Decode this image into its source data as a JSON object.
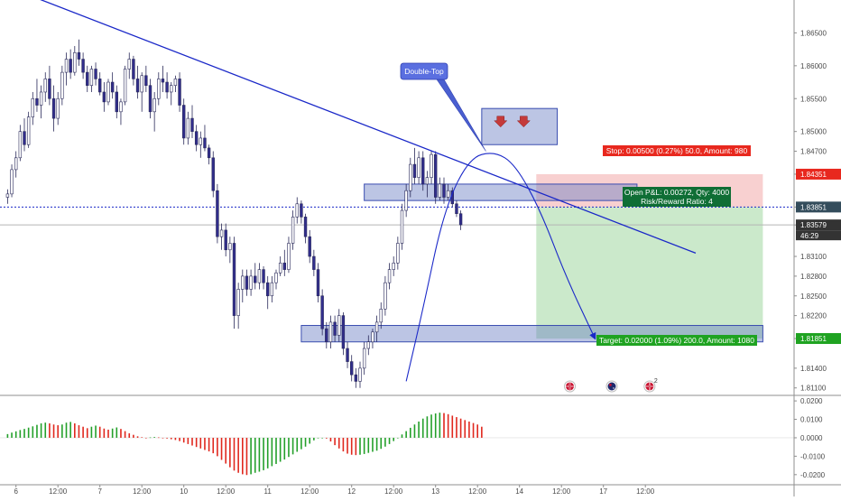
{
  "chart_data": {
    "type": "candlestick",
    "instrument_precision": 5,
    "main_ylim": [
      1.81,
      1.87
    ],
    "osc_ylim": [
      -0.0245,
      0.0225
    ],
    "price_ticks": [
      "1.86500",
      "1.86000",
      "1.85500",
      "1.85000",
      "1.84700",
      "1.84351",
      "1.83851",
      "1.83579",
      "1.83100",
      "1.82800",
      "1.82500",
      "1.82200",
      "1.81851",
      "1.81400",
      "1.81100"
    ],
    "price_tick_values": [
      1.865,
      1.86,
      1.855,
      1.85,
      1.847,
      1.84351,
      1.83851,
      1.83579,
      1.831,
      1.828,
      1.825,
      1.822,
      1.81851,
      1.814,
      1.811
    ],
    "osc_ticks": [
      "0.0200",
      "0.0100",
      "0.0000",
      "-0.0100",
      "-0.0200"
    ],
    "osc_tick_values": [
      0.02,
      0.01,
      0.0,
      -0.01,
      -0.02
    ],
    "time_labels": [
      "6",
      "12:00",
      "7",
      "12:00",
      "10",
      "12:00",
      "11",
      "12:00",
      "12",
      "12:00",
      "13",
      "12:00",
      "14",
      "12:00",
      "17",
      "12:00"
    ],
    "time_label_bars": [
      2,
      12,
      22,
      32,
      42,
      52,
      62,
      72,
      82,
      92,
      102,
      112,
      122,
      132,
      142,
      152
    ],
    "ohlc": [
      [
        1.84,
        1.8412,
        1.839,
        1.8405
      ],
      [
        1.8405,
        1.845,
        1.84,
        1.8442
      ],
      [
        1.8442,
        1.847,
        1.843,
        1.846
      ],
      [
        1.846,
        1.851,
        1.8455,
        1.85
      ],
      [
        1.85,
        1.852,
        1.847,
        1.848
      ],
      [
        1.848,
        1.853,
        1.8475,
        1.8522
      ],
      [
        1.8522,
        1.856,
        1.851,
        1.855
      ],
      [
        1.855,
        1.858,
        1.853,
        1.854
      ],
      [
        1.854,
        1.857,
        1.852,
        1.856
      ],
      [
        1.856,
        1.859,
        1.8545,
        1.858
      ],
      [
        1.858,
        1.86,
        1.854,
        1.855
      ],
      [
        1.855,
        1.857,
        1.85,
        1.852
      ],
      [
        1.852,
        1.856,
        1.851,
        1.855
      ],
      [
        1.855,
        1.86,
        1.854,
        1.859
      ],
      [
        1.859,
        1.862,
        1.857,
        1.861
      ],
      [
        1.861,
        1.8625,
        1.858,
        1.859
      ],
      [
        1.859,
        1.863,
        1.8585,
        1.862
      ],
      [
        1.862,
        1.864,
        1.86,
        1.861
      ],
      [
        1.861,
        1.862,
        1.858,
        1.859
      ],
      [
        1.859,
        1.86,
        1.856,
        1.857
      ],
      [
        1.857,
        1.86,
        1.856,
        1.8595
      ],
      [
        1.8595,
        1.8605,
        1.857,
        1.858
      ],
      [
        1.858,
        1.859,
        1.8555,
        1.856
      ],
      [
        1.856,
        1.8575,
        1.853,
        1.8545
      ],
      [
        1.8545,
        1.858,
        1.854,
        1.8575
      ],
      [
        1.8575,
        1.859,
        1.855,
        1.856
      ],
      [
        1.856,
        1.857,
        1.852,
        1.853
      ],
      [
        1.853,
        1.855,
        1.851,
        1.8545
      ],
      [
        1.8545,
        1.86,
        1.854,
        1.8595
      ],
      [
        1.8595,
        1.862,
        1.858,
        1.861
      ],
      [
        1.861,
        1.8615,
        1.857,
        1.858
      ],
      [
        1.858,
        1.86,
        1.855,
        1.856
      ],
      [
        1.856,
        1.859,
        1.853,
        1.8585
      ],
      [
        1.8585,
        1.86,
        1.856,
        1.857
      ],
      [
        1.857,
        1.858,
        1.852,
        1.853
      ],
      [
        1.853,
        1.856,
        1.85,
        1.855
      ],
      [
        1.855,
        1.859,
        1.854,
        1.858
      ],
      [
        1.858,
        1.86,
        1.856,
        1.8575
      ],
      [
        1.8575,
        1.859,
        1.855,
        1.856
      ],
      [
        1.856,
        1.8575,
        1.854,
        1.857
      ],
      [
        1.857,
        1.8585,
        1.856,
        1.858
      ],
      [
        1.858,
        1.859,
        1.853,
        1.854
      ],
      [
        1.854,
        1.855,
        1.848,
        1.849
      ],
      [
        1.849,
        1.853,
        1.848,
        1.852
      ],
      [
        1.852,
        1.854,
        1.849,
        1.85
      ],
      [
        1.85,
        1.851,
        1.847,
        1.848
      ],
      [
        1.848,
        1.85,
        1.846,
        1.849
      ],
      [
        1.849,
        1.851,
        1.847,
        1.8475
      ],
      [
        1.8475,
        1.848,
        1.845,
        1.846
      ],
      [
        1.846,
        1.847,
        1.84,
        1.841
      ],
      [
        1.841,
        1.842,
        1.833,
        1.834
      ],
      [
        1.834,
        1.836,
        1.832,
        1.835
      ],
      [
        1.835,
        1.836,
        1.831,
        1.832
      ],
      [
        1.832,
        1.834,
        1.83,
        1.833
      ],
      [
        1.833,
        1.834,
        1.82,
        1.822
      ],
      [
        1.822,
        1.827,
        1.82,
        1.826
      ],
      [
        1.826,
        1.829,
        1.824,
        1.828
      ],
      [
        1.828,
        1.829,
        1.825,
        1.826
      ],
      [
        1.826,
        1.829,
        1.825,
        1.828
      ],
      [
        1.828,
        1.83,
        1.826,
        1.827
      ],
      [
        1.827,
        1.83,
        1.826,
        1.829
      ],
      [
        1.829,
        1.8295,
        1.826,
        1.827
      ],
      [
        1.827,
        1.828,
        1.823,
        1.825
      ],
      [
        1.825,
        1.828,
        1.824,
        1.827
      ],
      [
        1.827,
        1.829,
        1.826,
        1.8285
      ],
      [
        1.8285,
        1.831,
        1.828,
        1.83
      ],
      [
        1.83,
        1.832,
        1.828,
        1.829
      ],
      [
        1.829,
        1.834,
        1.8285,
        1.833
      ],
      [
        1.833,
        1.838,
        1.832,
        1.837
      ],
      [
        1.837,
        1.84,
        1.836,
        1.839
      ],
      [
        1.839,
        1.8395,
        1.836,
        1.837
      ],
      [
        1.837,
        1.8375,
        1.833,
        1.834
      ],
      [
        1.834,
        1.835,
        1.83,
        1.831
      ],
      [
        1.831,
        1.832,
        1.828,
        1.829
      ],
      [
        1.829,
        1.83,
        1.824,
        1.825
      ],
      [
        1.825,
        1.826,
        1.819,
        1.82
      ],
      [
        1.82,
        1.821,
        1.817,
        1.818
      ],
      [
        1.818,
        1.822,
        1.817,
        1.821
      ],
      [
        1.821,
        1.822,
        1.818,
        1.819
      ],
      [
        1.819,
        1.823,
        1.818,
        1.822
      ],
      [
        1.822,
        1.8225,
        1.816,
        1.817
      ],
      [
        1.817,
        1.818,
        1.814,
        1.815
      ],
      [
        1.815,
        1.816,
        1.812,
        1.813
      ],
      [
        1.813,
        1.814,
        1.811,
        1.812
      ],
      [
        1.812,
        1.815,
        1.811,
        1.814
      ],
      [
        1.814,
        1.818,
        1.813,
        1.817
      ],
      [
        1.817,
        1.819,
        1.816,
        1.818
      ],
      [
        1.818,
        1.82,
        1.817,
        1.8195
      ],
      [
        1.8195,
        1.822,
        1.818,
        1.821
      ],
      [
        1.821,
        1.824,
        1.82,
        1.823
      ],
      [
        1.823,
        1.828,
        1.822,
        1.827
      ],
      [
        1.827,
        1.83,
        1.826,
        1.829
      ],
      [
        1.829,
        1.831,
        1.828,
        1.83
      ],
      [
        1.83,
        1.834,
        1.829,
        1.833
      ],
      [
        1.833,
        1.839,
        1.832,
        1.838
      ],
      [
        1.838,
        1.842,
        1.837,
        1.841
      ],
      [
        1.841,
        1.846,
        1.84,
        1.845
      ],
      [
        1.845,
        1.8475,
        1.842,
        1.843
      ],
      [
        1.843,
        1.847,
        1.842,
        1.846
      ],
      [
        1.846,
        1.847,
        1.841,
        1.842
      ],
      [
        1.842,
        1.844,
        1.84,
        1.843
      ],
      [
        1.843,
        1.847,
        1.842,
        1.8465
      ],
      [
        1.8465,
        1.847,
        1.839,
        1.84
      ],
      [
        1.84,
        1.843,
        1.8395,
        1.842
      ],
      [
        1.842,
        1.843,
        1.839,
        1.84
      ],
      [
        1.84,
        1.842,
        1.8395,
        1.841
      ],
      [
        1.841,
        1.8415,
        1.8385,
        1.839
      ],
      [
        1.839,
        1.8395,
        1.837,
        1.8375
      ],
      [
        1.8375,
        1.838,
        1.835,
        1.8358
      ]
    ],
    "oscillator": [
      0.002,
      0.0028,
      0.0035,
      0.0042,
      0.0048,
      0.0055,
      0.0062,
      0.007,
      0.0078,
      0.0082,
      0.0078,
      0.0072,
      0.0068,
      0.0072,
      0.0082,
      0.0086,
      0.0078,
      0.0068,
      0.006,
      0.0052,
      0.006,
      0.0066,
      0.006,
      0.005,
      0.0044,
      0.005,
      0.0056,
      0.0048,
      0.0036,
      0.0024,
      0.0016,
      0.0008,
      0.0003,
      0.0,
      0.0002,
      0.0004,
      0.0002,
      0.0,
      -0.0004,
      -0.0008,
      -0.0012,
      -0.0018,
      -0.0026,
      -0.0034,
      -0.0042,
      -0.005,
      -0.0058,
      -0.0066,
      -0.0074,
      -0.0084,
      -0.01,
      -0.012,
      -0.014,
      -0.016,
      -0.0178,
      -0.019,
      -0.0198,
      -0.0202,
      -0.0198,
      -0.019,
      -0.0184,
      -0.0176,
      -0.0166,
      -0.0154,
      -0.0142,
      -0.013,
      -0.0118,
      -0.0104,
      -0.009,
      -0.0076,
      -0.0062,
      -0.0048,
      -0.0032,
      -0.0014,
      -0.0002,
      0.0,
      -0.0004,
      -0.002,
      -0.004,
      -0.0058,
      -0.0074,
      -0.0086,
      -0.0092,
      -0.0094,
      -0.0092,
      -0.0088,
      -0.0082,
      -0.0076,
      -0.007,
      -0.006,
      -0.0048,
      -0.0034,
      -0.0018,
      0.0,
      0.0018,
      0.0036,
      0.0054,
      0.0072,
      0.0088,
      0.0104,
      0.0116,
      0.0126,
      0.0132,
      0.0136,
      0.0134,
      0.0128,
      0.012,
      0.0112,
      0.0104,
      0.0096,
      0.0088,
      0.008,
      0.0072,
      0.006
    ],
    "trendline": {
      "start": [
        0,
        1.872
      ],
      "end": [
        164,
        1.8315
      ]
    },
    "arc_path": [
      [
        95,
        1.812
      ],
      [
        99,
        1.823
      ],
      [
        104,
        1.838
      ],
      [
        110,
        1.846
      ],
      [
        116,
        1.847
      ],
      [
        121,
        1.845
      ],
      [
        127,
        1.838
      ],
      [
        133,
        1.828
      ],
      [
        140,
        1.8185
      ]
    ],
    "resistance_box": {
      "bar_start": 113,
      "bar_end": 131,
      "price_low": 1.848,
      "price_high": 1.8535
    },
    "mid_box": {
      "bar_start": 85,
      "bar_end": 150,
      "price_low": 1.8395,
      "price_high": 1.842
    },
    "support_box": {
      "bar_start": 70,
      "bar_end": 180,
      "price_low": 1.818,
      "price_high": 1.8205
    },
    "dotted_line_price": 1.83851,
    "gray_line_price": 1.83579,
    "position": {
      "bar_start": 126,
      "bar_end": 180,
      "entry": 1.83851,
      "stop": 1.84351,
      "target": 1.81851
    }
  },
  "labels": {
    "double_top": "Double-Top",
    "stop": "Stop: 0.00500 (0.27%) 50.0, Amount: 980",
    "open_pl_line1": "Open P&L: 0.00272, Qty: 4000",
    "open_pl_line2": "Risk/Reward Ratio: 4",
    "target": "Target: 0.02000 (1.09%) 200.0, Amount: 1080",
    "countdown": "46:29"
  },
  "event_markers": [
    {
      "icon": "uk-flag-icon",
      "bar": 134,
      "badge": ""
    },
    {
      "icon": "australia-flag-icon",
      "bar": 144,
      "badge": ""
    },
    {
      "icon": "uk-flag-icon",
      "bar": 153,
      "badge": "2"
    }
  ],
  "colors": {
    "up": "#ffffff",
    "down": "#312d8c",
    "candle_outline": "#2a2a5a",
    "trendline": "#1a28c8",
    "box_fill": "rgba(106,126,196,0.45)",
    "box_stroke": "#3a4db0",
    "stop_zone": "rgba(240,150,150,0.45)",
    "target_zone": "rgba(160,215,160,0.55)",
    "stop_label": "#e8281e",
    "target_label": "#1fa321",
    "entry_label": "#0f6e35",
    "osc_up": "#23a02a",
    "osc_down": "#e0281e",
    "axis_text": "#4a4a4a",
    "label_current": "#333333",
    "label_entry": "#344d5c"
  }
}
